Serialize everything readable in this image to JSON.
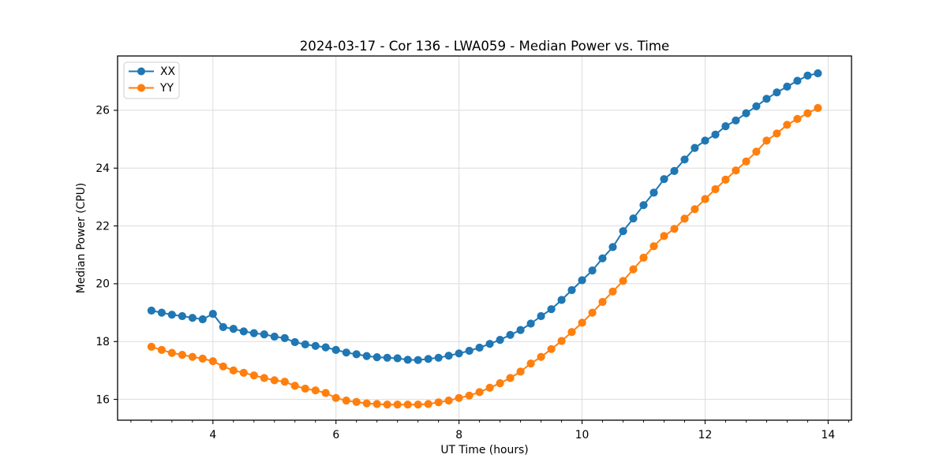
{
  "figure": {
    "background": "#ffffff",
    "plot_background": "#ffffff",
    "grid_color": "#dcdcdc",
    "spine_color": "#000000"
  },
  "legend": {
    "position": "upper-left",
    "entries": [
      {
        "label": "XX",
        "color": "#1f77b4"
      },
      {
        "label": "YY",
        "color": "#ff7f0e"
      }
    ]
  },
  "chart_data": {
    "type": "line",
    "title": "2024-03-17 - Cor 136 - LWA059 - Median Power vs. Time",
    "xlabel": "UT Time (hours)",
    "ylabel": "Median Power (CPU)",
    "xlim": [
      2.45,
      14.38
    ],
    "ylim": [
      15.28,
      27.88
    ],
    "xticks": [
      4,
      6,
      8,
      10,
      12,
      14
    ],
    "yticks": [
      16,
      18,
      20,
      22,
      24,
      26
    ],
    "minor_xtick_step": 0.3333,
    "grid": true,
    "legend_position": "upper-left",
    "marker": "circle",
    "x": [
      3.0,
      3.167,
      3.333,
      3.5,
      3.667,
      3.833,
      4.0,
      4.167,
      4.333,
      4.5,
      4.667,
      4.833,
      5.0,
      5.167,
      5.333,
      5.5,
      5.667,
      5.833,
      6.0,
      6.167,
      6.333,
      6.5,
      6.667,
      6.833,
      7.0,
      7.167,
      7.333,
      7.5,
      7.667,
      7.833,
      8.0,
      8.167,
      8.333,
      8.5,
      8.667,
      8.833,
      9.0,
      9.167,
      9.333,
      9.5,
      9.667,
      9.833,
      10.0,
      10.167,
      10.333,
      10.5,
      10.667,
      10.833,
      11.0,
      11.167,
      11.333,
      11.5,
      11.667,
      11.833,
      12.0,
      12.167,
      12.333,
      12.5,
      12.667,
      12.833,
      13.0,
      13.167,
      13.333,
      13.5,
      13.667,
      13.833
    ],
    "series": [
      {
        "name": "XX",
        "color": "#1f77b4",
        "values": [
          19.07,
          19.0,
          18.93,
          18.88,
          18.82,
          18.77,
          18.96,
          18.5,
          18.44,
          18.35,
          18.29,
          18.25,
          18.17,
          18.12,
          17.98,
          17.9,
          17.85,
          17.8,
          17.71,
          17.62,
          17.56,
          17.5,
          17.46,
          17.44,
          17.42,
          17.37,
          17.36,
          17.4,
          17.44,
          17.51,
          17.59,
          17.68,
          17.79,
          17.92,
          18.06,
          18.23,
          18.4,
          18.62,
          18.88,
          19.12,
          19.44,
          19.78,
          20.12,
          20.46,
          20.88,
          21.27,
          21.82,
          22.26,
          22.72,
          23.15,
          23.62,
          23.9,
          24.3,
          24.7,
          24.95,
          25.16,
          25.45,
          25.65,
          25.9,
          26.14,
          26.4,
          26.62,
          26.82,
          27.02,
          27.2,
          27.28
        ]
      },
      {
        "name": "YY",
        "color": "#ff7f0e",
        "values": [
          17.82,
          17.71,
          17.61,
          17.54,
          17.47,
          17.41,
          17.32,
          17.14,
          17.0,
          16.92,
          16.83,
          16.74,
          16.66,
          16.61,
          16.47,
          16.37,
          16.31,
          16.22,
          16.05,
          15.96,
          15.91,
          15.86,
          15.84,
          15.82,
          15.82,
          15.82,
          15.82,
          15.84,
          15.9,
          15.96,
          16.05,
          16.13,
          16.25,
          16.4,
          16.56,
          16.74,
          16.96,
          17.24,
          17.47,
          17.74,
          18.02,
          18.33,
          18.65,
          19.0,
          19.37,
          19.73,
          20.1,
          20.5,
          20.9,
          21.3,
          21.65,
          21.9,
          22.25,
          22.58,
          22.93,
          23.27,
          23.6,
          23.92,
          24.23,
          24.57,
          24.95,
          25.2,
          25.5,
          25.7,
          25.9,
          26.08
        ]
      }
    ]
  }
}
